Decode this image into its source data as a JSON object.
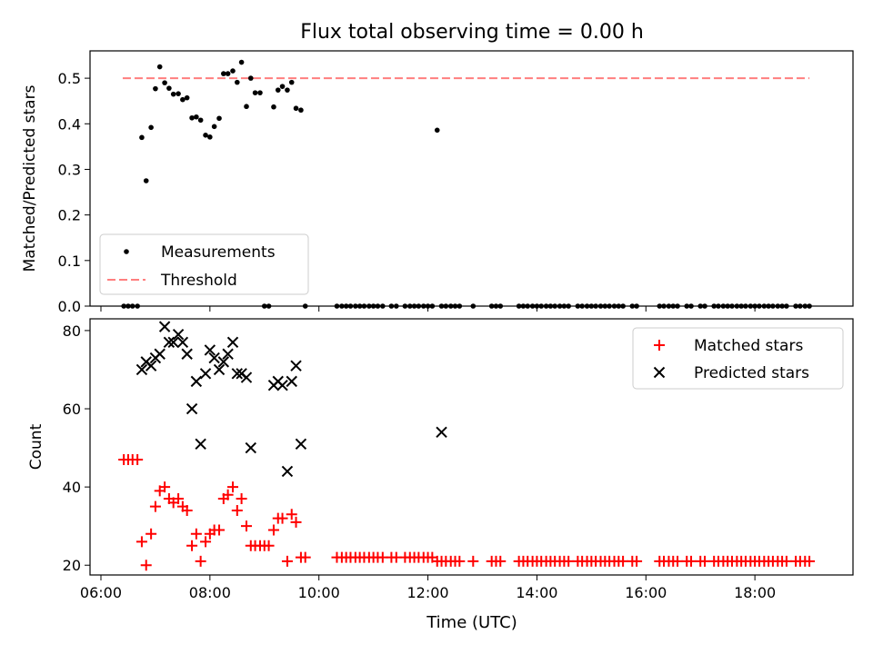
{
  "figure": {
    "title": "Flux total observing time = 0.00 h",
    "xlabel": "Time (UTC)",
    "x_ticks": [
      "06:00",
      "08:00",
      "10:00",
      "12:00",
      "14:00",
      "16:00",
      "18:00"
    ]
  },
  "colors": {
    "measurement": "#000000",
    "threshold": "#ff7f7f",
    "matched": "#ff0000",
    "predicted": "#000000"
  },
  "chart_data": [
    {
      "type": "scatter",
      "ylabel": "Matched/Predicted stars",
      "x_unit": "hours UTC",
      "xlim": [
        5.8,
        19.8
      ],
      "ylim": [
        0,
        0.56
      ],
      "y_ticks": [
        "0.0",
        "0.1",
        "0.2",
        "0.3",
        "0.4",
        "0.5"
      ],
      "legend": {
        "location": "lower-left",
        "entries": [
          "Measurements",
          "Threshold"
        ]
      },
      "threshold": {
        "name": "Threshold",
        "value": 0.5,
        "x_range": [
          6.4,
          19.0
        ]
      },
      "series": [
        {
          "name": "Measurements",
          "marker": "dot",
          "x": [
            6.42,
            6.5,
            6.58,
            6.67,
            6.75,
            6.83,
            6.92,
            7.0,
            7.08,
            7.17,
            7.25,
            7.33,
            7.42,
            7.5,
            7.58,
            7.67,
            7.75,
            7.83,
            7.92,
            8.0,
            8.08,
            8.17,
            8.25,
            8.33,
            8.42,
            8.5,
            8.58,
            8.67,
            8.75,
            8.83,
            8.92,
            9.0,
            9.08,
            9.17,
            9.25,
            9.33,
            9.42,
            9.5,
            9.58,
            9.67,
            9.75,
            10.33,
            10.42,
            10.5,
            10.58,
            10.67,
            10.75,
            10.83,
            10.92,
            11.0,
            11.08,
            11.17,
            11.33,
            11.42,
            11.58,
            11.67,
            11.75,
            11.83,
            11.92,
            12.0,
            12.08,
            12.17,
            12.25,
            12.33,
            12.42,
            12.5,
            12.58,
            12.83,
            13.17,
            13.25,
            13.33,
            13.67,
            13.75,
            13.83,
            13.92,
            14.0,
            14.08,
            14.17,
            14.25,
            14.33,
            14.42,
            14.5,
            14.58,
            14.75,
            14.83,
            14.92,
            15.0,
            15.08,
            15.17,
            15.25,
            15.33,
            15.42,
            15.5,
            15.58,
            15.75,
            15.83,
            16.25,
            16.33,
            16.42,
            16.5,
            16.58,
            16.75,
            16.83,
            17.0,
            17.08,
            17.25,
            17.33,
            17.42,
            17.5,
            17.58,
            17.67,
            17.75,
            17.83,
            17.92,
            18.0,
            18.08,
            18.17,
            18.25,
            18.33,
            18.42,
            18.5,
            18.58,
            18.75,
            18.83,
            18.92,
            19.0
          ],
          "y": [
            0,
            0,
            0,
            0,
            0.37,
            0.275,
            0.392,
            0.477,
            0.525,
            0.49,
            0.478,
            0.465,
            0.466,
            0.453,
            0.457,
            0.413,
            0.415,
            0.408,
            0.375,
            0.371,
            0.394,
            0.412,
            0.51,
            0.51,
            0.516,
            0.491,
            0.535,
            0.438,
            0.5,
            0.468,
            0.468,
            0,
            0,
            0.437,
            0.474,
            0.482,
            0.474,
            0.491,
            0.434,
            0.43,
            0,
            0,
            0,
            0,
            0,
            0,
            0,
            0,
            0,
            0,
            0,
            0,
            0,
            0,
            0,
            0,
            0,
            0,
            0,
            0,
            0,
            0.386,
            0,
            0,
            0,
            0,
            0,
            0,
            0,
            0,
            0,
            0,
            0,
            0,
            0,
            0,
            0,
            0,
            0,
            0,
            0,
            0,
            0,
            0,
            0,
            0,
            0,
            0,
            0,
            0,
            0,
            0,
            0,
            0,
            0,
            0,
            0,
            0,
            0,
            0,
            0,
            0,
            0,
            0,
            0,
            0,
            0,
            0,
            0,
            0,
            0,
            0,
            0,
            0,
            0,
            0,
            0,
            0,
            0,
            0,
            0,
            0,
            0,
            0,
            0,
            0
          ]
        }
      ]
    },
    {
      "type": "scatter",
      "ylabel": "Count",
      "x_unit": "hours UTC",
      "xlim": [
        5.8,
        19.8
      ],
      "ylim": [
        17.5,
        83
      ],
      "y_ticks": [
        "20",
        "40",
        "60",
        "80"
      ],
      "legend": {
        "location": "upper-right",
        "entries": [
          "Matched stars",
          "Predicted stars"
        ]
      },
      "series": [
        {
          "name": "Matched stars",
          "marker": "plus",
          "x": [
            6.42,
            6.5,
            6.58,
            6.67,
            6.75,
            6.83,
            6.92,
            7.0,
            7.08,
            7.17,
            7.25,
            7.33,
            7.42,
            7.5,
            7.58,
            7.67,
            7.75,
            7.83,
            7.92,
            8.0,
            8.08,
            8.17,
            8.25,
            8.33,
            8.42,
            8.5,
            8.58,
            8.67,
            8.75,
            8.83,
            8.92,
            9.0,
            9.08,
            9.17,
            9.25,
            9.33,
            9.42,
            9.5,
            9.58,
            9.67,
            9.75,
            10.33,
            10.42,
            10.5,
            10.58,
            10.67,
            10.75,
            10.83,
            10.92,
            11.0,
            11.08,
            11.17,
            11.33,
            11.42,
            11.58,
            11.67,
            11.75,
            11.83,
            11.92,
            12.0,
            12.08,
            12.17,
            12.25,
            12.33,
            12.42,
            12.5,
            12.58,
            12.83,
            13.17,
            13.25,
            13.33,
            13.67,
            13.75,
            13.83,
            13.92,
            14.0,
            14.08,
            14.17,
            14.25,
            14.33,
            14.42,
            14.5,
            14.58,
            14.75,
            14.83,
            14.92,
            15.0,
            15.08,
            15.17,
            15.25,
            15.33,
            15.42,
            15.5,
            15.58,
            15.75,
            15.83,
            16.25,
            16.33,
            16.42,
            16.5,
            16.58,
            16.75,
            16.83,
            17.0,
            17.08,
            17.25,
            17.33,
            17.42,
            17.5,
            17.58,
            17.67,
            17.75,
            17.83,
            17.92,
            18.0,
            18.08,
            18.17,
            18.25,
            18.33,
            18.42,
            18.5,
            18.58,
            18.75,
            18.83,
            18.92,
            19.0
          ],
          "y": [
            47,
            47,
            47,
            47,
            26,
            20,
            28,
            35,
            39,
            40,
            37,
            36,
            37,
            35,
            34,
            25,
            28,
            21,
            26,
            28,
            29,
            29,
            37,
            38,
            40,
            34,
            37,
            30,
            25,
            25,
            25,
            25,
            25,
            29,
            32,
            32,
            21,
            33,
            31,
            22,
            22,
            22,
            22,
            22,
            22,
            22,
            22,
            22,
            22,
            22,
            22,
            22,
            22,
            22,
            22,
            22,
            22,
            22,
            22,
            22,
            22,
            21,
            21,
            21,
            21,
            21,
            21,
            21,
            21,
            21,
            21,
            21,
            21,
            21,
            21,
            21,
            21,
            21,
            21,
            21,
            21,
            21,
            21,
            21,
            21,
            21,
            21,
            21,
            21,
            21,
            21,
            21,
            21,
            21,
            21,
            21,
            21,
            21,
            21,
            21,
            21,
            21,
            21,
            21,
            21,
            21,
            21,
            21,
            21,
            21,
            21,
            21,
            21,
            21,
            21,
            21,
            21,
            21,
            21,
            21,
            21,
            21,
            21,
            21,
            21,
            21
          ]
        },
        {
          "name": "Predicted stars",
          "marker": "x",
          "x": [
            6.75,
            6.83,
            6.92,
            7.0,
            7.08,
            7.17,
            7.25,
            7.33,
            7.42,
            7.5,
            7.58,
            7.67,
            7.75,
            7.83,
            7.92,
            8.0,
            8.08,
            8.17,
            8.25,
            8.33,
            8.42,
            8.5,
            8.58,
            8.67,
            8.75,
            9.17,
            9.25,
            9.33,
            9.42,
            9.5,
            9.58,
            9.67,
            12.25
          ],
          "y": [
            70,
            72,
            71,
            73,
            74,
            81,
            77,
            77,
            79,
            77,
            74,
            60,
            67,
            51,
            69,
            75,
            73,
            70,
            72,
            74,
            77,
            69,
            69,
            68,
            50,
            66,
            67,
            66,
            44,
            67,
            71,
            51,
            54
          ]
        }
      ]
    }
  ]
}
